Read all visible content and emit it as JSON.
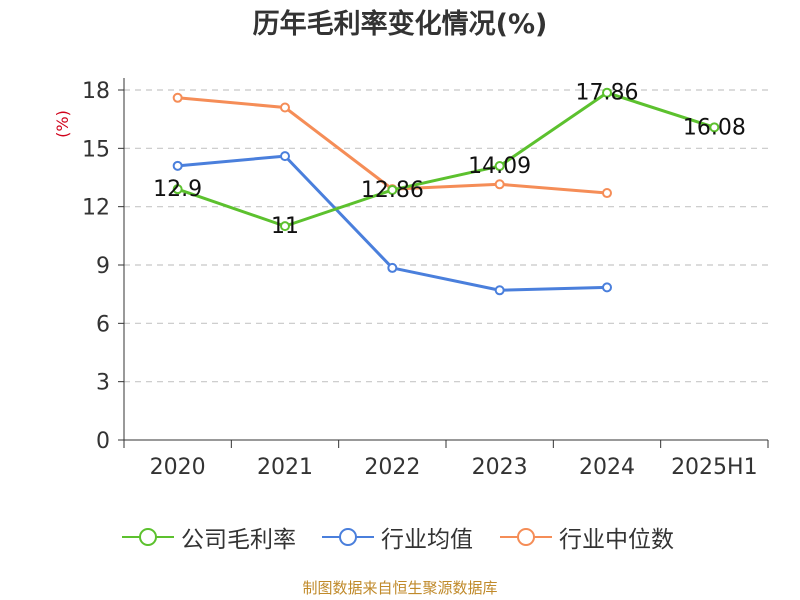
{
  "title": "历年毛利率变化情况(%)",
  "source_note": "制图数据来自恒生聚源数据库",
  "chart_data": {
    "type": "line",
    "title": "历年毛利率变化情况(%)",
    "ylabel": "(%)",
    "xlabel": "",
    "categories": [
      "2020",
      "2021",
      "2022",
      "2023",
      "2024",
      "2025H1"
    ],
    "ylim": [
      0,
      18
    ],
    "yticks": [
      0,
      3,
      6,
      9,
      12,
      15,
      18
    ],
    "grid": true,
    "legend_position": "bottom",
    "series": [
      {
        "name": "公司毛利率",
        "color": "#5cc12e",
        "values": [
          12.9,
          11,
          12.86,
          14.09,
          17.86,
          16.08
        ],
        "data_labels": [
          "12.9",
          "11",
          "12.86",
          "14.09",
          "17.86",
          "16.08"
        ]
      },
      {
        "name": "行业均值",
        "color": "#4a7fdc",
        "values": [
          14.1,
          14.6,
          8.85,
          7.7,
          7.85,
          null
        ],
        "data_labels": []
      },
      {
        "name": "行业中位数",
        "color": "#f58d57",
        "values": [
          17.6,
          17.1,
          12.9,
          13.15,
          12.7,
          null
        ],
        "data_labels": []
      }
    ]
  }
}
